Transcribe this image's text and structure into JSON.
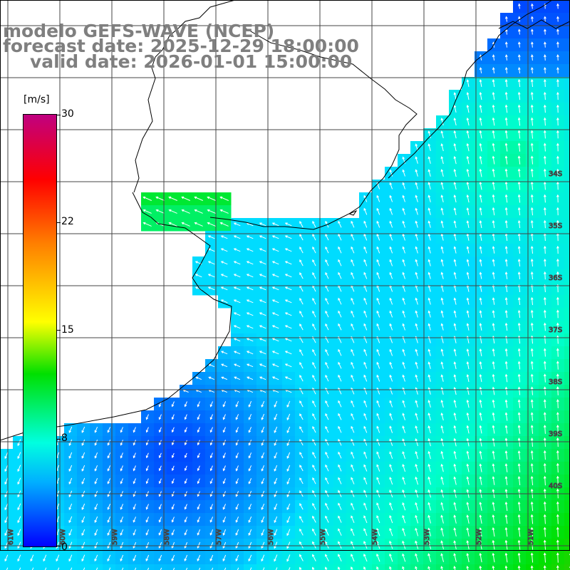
{
  "title": {
    "line1": "modelo GEFS-WAVE (NCEP)",
    "line2": "forecast date: 2025-12-29 18:00:00",
    "line3": "valid date: 2026-01-01 15:00:00"
  },
  "colorbar": {
    "unit": "[m/s]",
    "ticks": [
      "30",
      "22",
      "15",
      "8",
      "0"
    ],
    "min": 0,
    "max": 30
  },
  "lat_labels": [
    "34S",
    "35S",
    "36S",
    "37S",
    "38S",
    "39S",
    "40S"
  ],
  "lon_labels": [
    "61W",
    "60W",
    "59W",
    "58W",
    "57W",
    "56W",
    "55W",
    "54W",
    "53W",
    "52W",
    "51W"
  ],
  "colors": {
    "title": "#7f7f7f",
    "grid": "#555555",
    "coast": "#000000",
    "arrow": "#ffffff",
    "land": "#ffffff"
  }
}
